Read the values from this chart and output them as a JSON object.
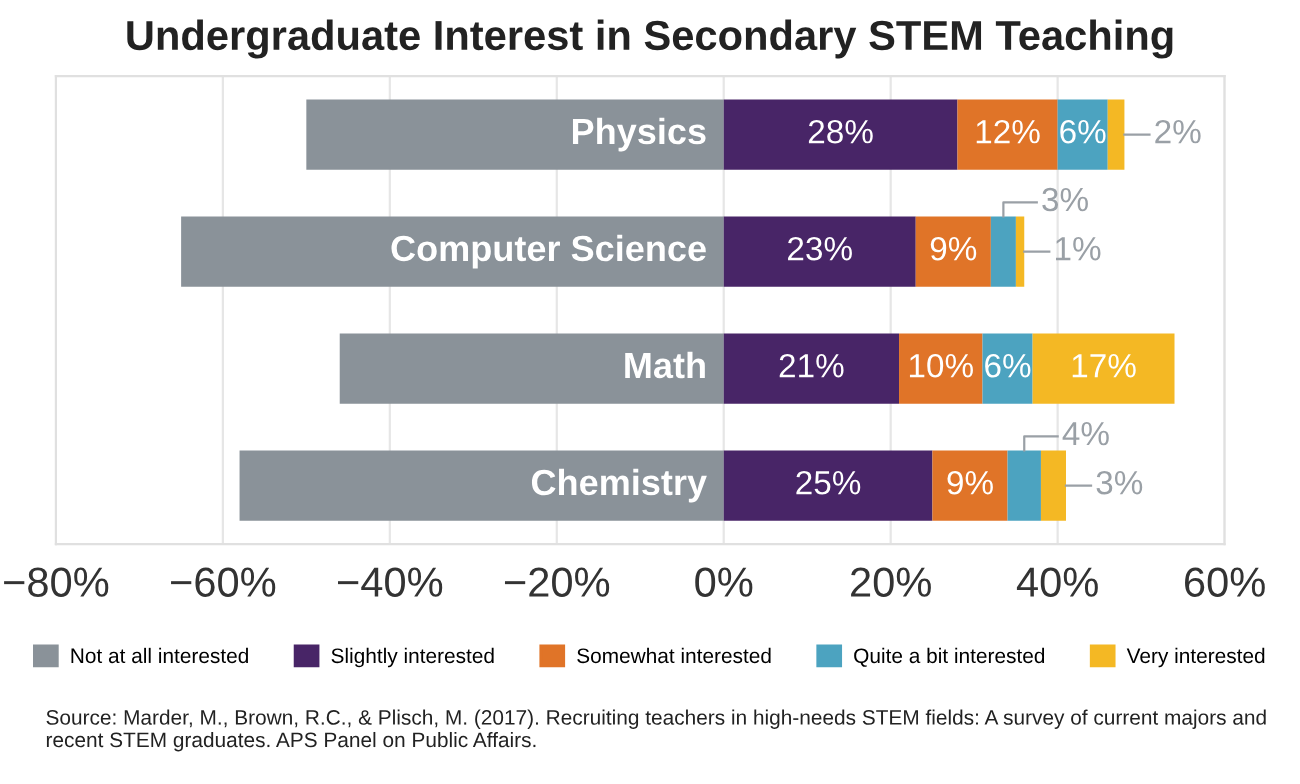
{
  "chart_data": {
    "type": "bar",
    "orientation": "horizontal",
    "stacked": true,
    "title": "Undergraduate Interest in Secondary STEM Teaching",
    "categories": [
      "Physics",
      "Computer Science",
      "Math",
      "Chemistry"
    ],
    "series": [
      {
        "name": "Not at all interested",
        "color": "#8a9299",
        "values": [
          -50,
          -65,
          -46,
          -58
        ]
      },
      {
        "name": "Slightly interested",
        "color": "#482567",
        "values": [
          28,
          23,
          21,
          25
        ],
        "value_labels": [
          "28%",
          "23%",
          "21%",
          "25%"
        ]
      },
      {
        "name": "Somewhat interested",
        "color": "#e07428",
        "values": [
          12,
          9,
          10,
          9
        ],
        "value_labels": [
          "12%",
          "9%",
          "10%",
          "9%"
        ]
      },
      {
        "name": "Quite a bit interested",
        "color": "#4ca3c0",
        "values": [
          6,
          3,
          6,
          4
        ],
        "value_labels": [
          "6%",
          "3%",
          "6%",
          "4%"
        ]
      },
      {
        "name": "Very interested",
        "color": "#f4b824",
        "values": [
          2,
          1,
          17,
          3
        ],
        "value_labels": [
          "2%",
          "1%",
          "17%",
          "3%"
        ]
      }
    ],
    "xlim": [
      -80,
      60
    ],
    "xticks": [
      {
        "value": -80,
        "label": "−80%"
      },
      {
        "value": -60,
        "label": "−60%"
      },
      {
        "value": -40,
        "label": "−40%"
      },
      {
        "value": -20,
        "label": "−20%"
      },
      {
        "value": 0,
        "label": "0%"
      },
      {
        "value": 20,
        "label": "20%"
      },
      {
        "value": 40,
        "label": "40%"
      },
      {
        "value": 60,
        "label": "60%"
      }
    ],
    "grid": "x",
    "legend": "bottom",
    "annotations": [
      "Source: Marder, M., Brown, R.C., & Plisch, M. (2017). Recruiting teachers in high-needs STEM fields: A survey of current majors and recent STEM graduates. APS Panel on Public Affairs."
    ]
  }
}
